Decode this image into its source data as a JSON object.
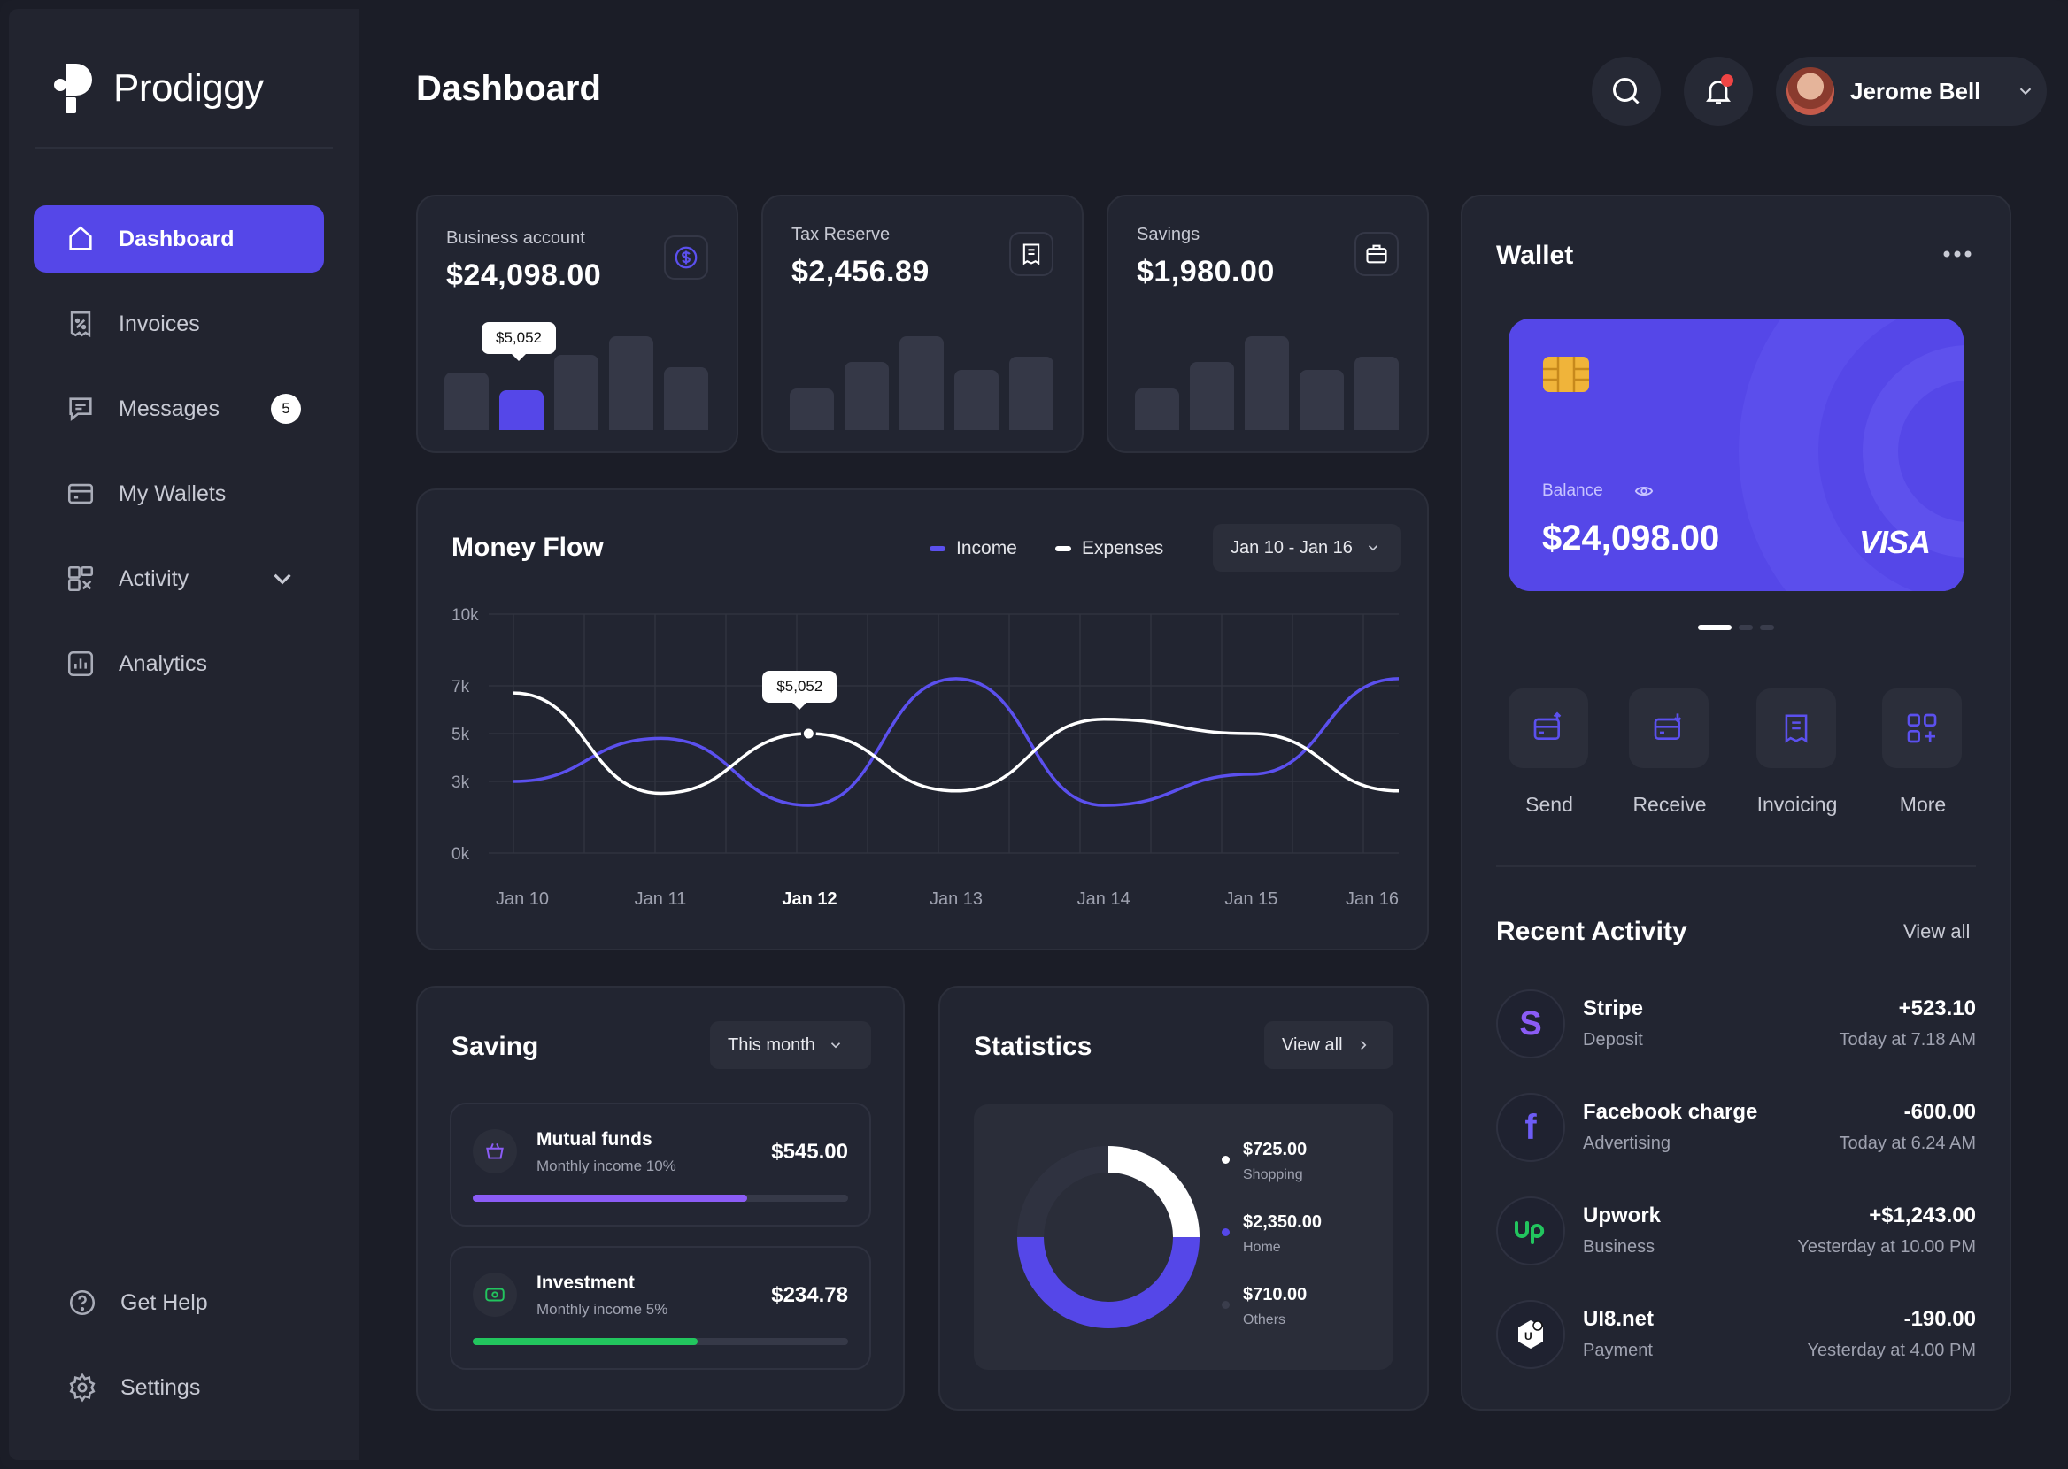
{
  "app": {
    "logo": "Prodiggy"
  },
  "sidebar": {
    "items": [
      {
        "label": "Dashboard"
      },
      {
        "label": "Invoices"
      },
      {
        "label": "Messages",
        "badge": "5"
      },
      {
        "label": "My Wallets"
      },
      {
        "label": "Activity"
      },
      {
        "label": "Analytics"
      }
    ],
    "bottom": [
      {
        "label": "Get Help"
      },
      {
        "label": "Settings"
      }
    ]
  },
  "header": {
    "title": "Dashboard",
    "user_name": "Jerome Bell"
  },
  "accounts": [
    {
      "label": "Business account",
      "value": "$24,098.00",
      "icon": "dollar-icon",
      "tooltip": "$5,052",
      "bars": [
        0.55,
        0.38,
        0.72,
        0.9,
        0.6
      ],
      "highlight_index": 1
    },
    {
      "label": "Tax Reserve",
      "value": "$2,456.89",
      "icon": "receipt-icon",
      "bars": [
        0.4,
        0.65,
        0.9,
        0.58,
        0.7
      ]
    },
    {
      "label": "Savings",
      "value": "$1,980.00",
      "icon": "briefcase-icon",
      "bars": [
        0.4,
        0.65,
        0.9,
        0.58,
        0.7
      ]
    }
  ],
  "money_flow": {
    "title": "Money Flow",
    "legend_income": "Income",
    "legend_expenses": "Expenses",
    "range": "Jan 10 - Jan 16",
    "tooltip": "$5,052"
  },
  "chart_data": {
    "type": "line",
    "x": [
      "Jan 10",
      "Jan 11",
      "Jan 12",
      "Jan 13",
      "Jan 14",
      "Jan 15",
      "Jan 16"
    ],
    "y_ticks": [
      "10k",
      "7k",
      "5k",
      "3k",
      "0k"
    ],
    "highlight_x": "Jan 12",
    "series": [
      {
        "name": "Income",
        "color": "#5b50ee",
        "values": [
          3.0,
          4.8,
          2.0,
          7.3,
          2.0,
          3.3,
          7.3
        ]
      },
      {
        "name": "Expenses",
        "color": "#ffffff",
        "values": [
          6.7,
          2.5,
          5.0,
          2.6,
          5.6,
          5.0,
          2.6
        ]
      }
    ]
  },
  "saving": {
    "title": "Saving",
    "period": "This month",
    "items": [
      {
        "name": "Mutual funds",
        "sub": "Monthly income 10%",
        "amount": "$545.00",
        "progress": 0.73,
        "color": "#8b5cf6"
      },
      {
        "name": "Investment",
        "sub": "Monthly income 5%",
        "amount": "$234.78",
        "progress": 0.6,
        "color": "#22c55e"
      }
    ]
  },
  "statistics": {
    "title": "Statistics",
    "view_all": "View all",
    "items": [
      {
        "value": "$725.00",
        "label": "Shopping",
        "color": "#ffffff",
        "share": 0.25
      },
      {
        "value": "$2,350.00",
        "label": "Home",
        "color": "#5547e8",
        "share": 0.5
      },
      {
        "value": "$710.00",
        "label": "Others",
        "color": "#2f3240",
        "share": 0.25
      }
    ]
  },
  "wallet": {
    "title": "Wallet",
    "balance_label": "Balance",
    "balance": "$24,098.00",
    "brand": "VISA",
    "actions": [
      {
        "label": "Send"
      },
      {
        "label": "Receive"
      },
      {
        "label": "Invoicing"
      },
      {
        "label": "More"
      }
    ]
  },
  "recent": {
    "title": "Recent Activity",
    "view_all": "View all",
    "items": [
      {
        "name": "Stripe",
        "sub": "Deposit",
        "amount": "+523.10",
        "time": "Today at 7.18 AM",
        "icon": "stripe-icon"
      },
      {
        "name": "Facebook charge",
        "sub": "Advertising",
        "amount": "-600.00",
        "time": "Today at 6.24 AM",
        "icon": "facebook-icon"
      },
      {
        "name": "Upwork",
        "sub": "Business",
        "amount": "+$1,243.00",
        "time": "Yesterday at 10.00 PM",
        "icon": "upwork-icon"
      },
      {
        "name": "UI8.net",
        "sub": "Payment",
        "amount": "-190.00",
        "time": "Yesterday at 4.00 PM",
        "icon": "ui8-icon"
      }
    ]
  }
}
